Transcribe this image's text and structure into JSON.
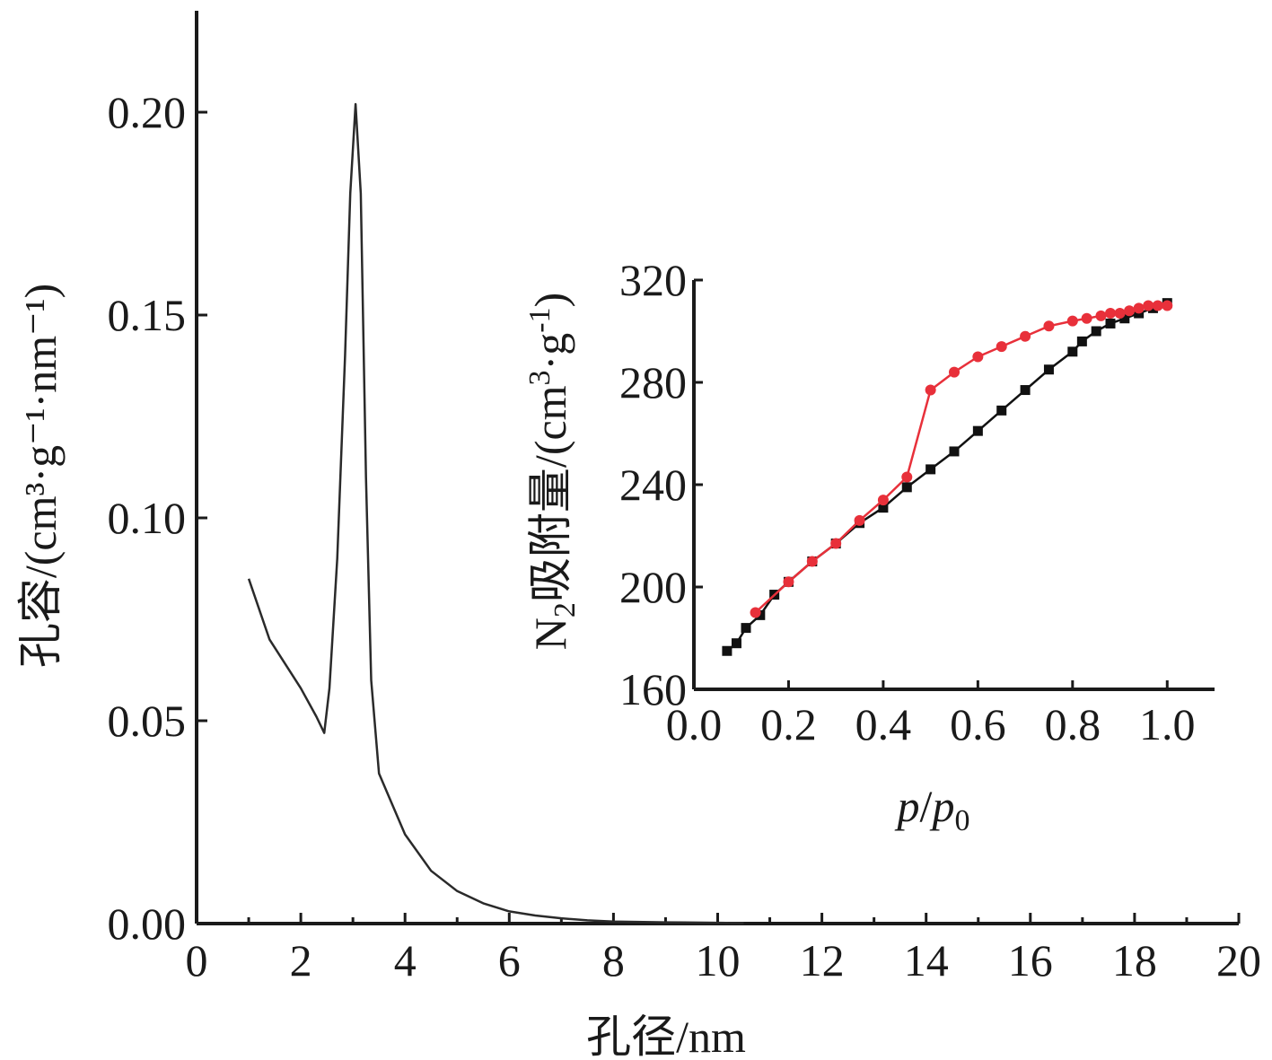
{
  "chart_data": [
    {
      "type": "line",
      "xlabel": "孔径/nm",
      "ylabel": "孔容/(cm³·g⁻¹·nm⁻¹)",
      "xlim": [
        0,
        20
      ],
      "ylim": [
        0,
        0.225
      ],
      "xticks": [
        "0",
        "2",
        "4",
        "6",
        "8",
        "10",
        "12",
        "14",
        "16",
        "18",
        "20"
      ],
      "yticks": [
        "0.00",
        "0.05",
        "0.10",
        "0.15",
        "0.20"
      ],
      "series": [
        {
          "color": "#2a2a2a",
          "x": [
            1.0,
            1.4,
            2.0,
            2.3,
            2.45,
            2.55,
            2.7,
            2.85,
            2.95,
            3.05,
            3.15,
            3.25,
            3.35,
            3.5,
            4.0,
            4.5,
            5.0,
            5.5,
            6.0,
            6.5,
            7.0,
            7.5,
            8.0,
            9.0,
            10.0,
            10.5
          ],
          "y": [
            0.085,
            0.07,
            0.058,
            0.051,
            0.047,
            0.058,
            0.09,
            0.14,
            0.18,
            0.202,
            0.18,
            0.11,
            0.06,
            0.037,
            0.022,
            0.013,
            0.008,
            0.005,
            0.003,
            0.002,
            0.0013,
            0.0008,
            0.0005,
            0.0003,
            0.0002,
            0.0001
          ]
        }
      ]
    },
    {
      "type": "line",
      "xlabel": "p/p0",
      "ylabel": "N2吸附量/(cm3·g-1)",
      "xlim": [
        0,
        1.1
      ],
      "ylim": [
        160,
        320
      ],
      "xticks": [
        "0.0",
        "0.2",
        "0.4",
        "0.6",
        "0.8",
        "1.0"
      ],
      "yticks": [
        "160",
        "200",
        "240",
        "280",
        "320"
      ],
      "series": [
        {
          "color": "#111111",
          "marker": "square",
          "x": [
            0.07,
            0.09,
            0.11,
            0.14,
            0.17,
            0.2,
            0.25,
            0.3,
            0.35,
            0.4,
            0.45,
            0.5,
            0.55,
            0.6,
            0.65,
            0.7,
            0.75,
            0.8,
            0.82,
            0.85,
            0.88,
            0.91,
            0.94,
            0.97,
            1.0
          ],
          "y": [
            175,
            178,
            184,
            189,
            197,
            202,
            210,
            217,
            225,
            231,
            239,
            246,
            253,
            261,
            269,
            277,
            285,
            292,
            296,
            300,
            303,
            305,
            307,
            309,
            311
          ]
        },
        {
          "color": "#e8303a",
          "marker": "circle",
          "x": [
            0.13,
            0.2,
            0.25,
            0.3,
            0.35,
            0.4,
            0.45,
            0.5,
            0.55,
            0.6,
            0.65,
            0.7,
            0.75,
            0.8,
            0.83,
            0.86,
            0.88,
            0.9,
            0.92,
            0.94,
            0.96,
            0.98,
            1.0
          ],
          "y": [
            190,
            202,
            210,
            217,
            226,
            234,
            243,
            277,
            284,
            290,
            294,
            298,
            302,
            304,
            305,
            306,
            307,
            307,
            308,
            309,
            310,
            310,
            310
          ]
        }
      ]
    }
  ]
}
